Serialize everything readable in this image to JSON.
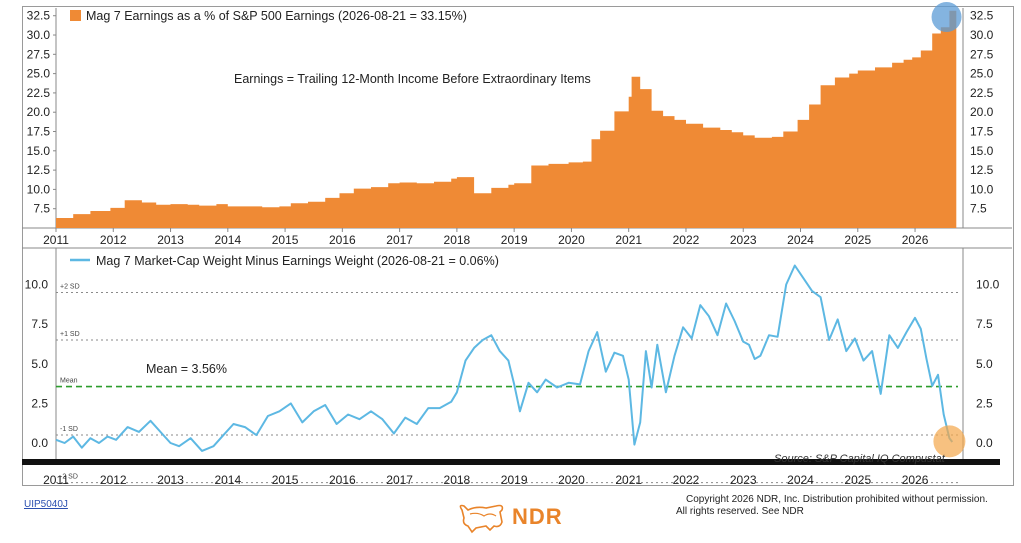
{
  "colors": {
    "earnings_fill": "#ef8a35",
    "spread_line": "#5db8e3",
    "mean_line": "#2d9d2d",
    "sd_line": "#8a8a8a",
    "highlight_blue": "#5b9bd5",
    "highlight_orange": "#f3a64a",
    "brand": "#e9842a"
  },
  "chart_data": [
    {
      "type": "area",
      "legend": "Mag 7 Earnings as a % of S&P 500 Earnings (2026-08-21 = 33.15%)",
      "annotation": "Earnings = Trailing 12-Month Income Before Extraordinary Items",
      "x_ticks": [
        "2011",
        "2012",
        "2013",
        "2014",
        "2015",
        "2016",
        "2017",
        "2018",
        "2019",
        "2020",
        "2021",
        "2022",
        "2023",
        "2024",
        "2025",
        "2026"
      ],
      "y_ticks": [
        "7.5",
        "10.0",
        "12.5",
        "15.0",
        "17.5",
        "20.0",
        "22.5",
        "25.0",
        "27.5",
        "30.0",
        "32.5"
      ],
      "ylim": [
        5,
        33.5
      ],
      "xlim": [
        2011.0,
        2026.75
      ],
      "series": [
        {
          "x": [
            2011.0,
            2011.3,
            2011.6,
            2011.95,
            2012.2,
            2012.5,
            2012.75,
            2013.0,
            2013.3,
            2013.5,
            2013.8,
            2014.0,
            2014.3,
            2014.6,
            2014.9,
            2015.1,
            2015.4,
            2015.7,
            2015.95,
            2016.2,
            2016.5,
            2016.8,
            2017.0,
            2017.3,
            2017.6,
            2017.9,
            2018.0,
            2018.3,
            2018.6,
            2018.9,
            2019.0,
            2019.3,
            2019.6,
            2019.95,
            2020.2,
            2020.35,
            2020.5,
            2020.75,
            2021.0,
            2021.05,
            2021.2,
            2021.4,
            2021.6,
            2021.8,
            2022.0,
            2022.3,
            2022.6,
            2022.8,
            2023.0,
            2023.2,
            2023.5,
            2023.7,
            2023.95,
            2024.15,
            2024.35,
            2024.6,
            2024.85,
            2025.0,
            2025.3,
            2025.6,
            2025.8,
            2025.95,
            2026.1,
            2026.3,
            2026.45,
            2026.6,
            2026.65
          ],
          "values": [
            6.3,
            6.8,
            7.2,
            7.6,
            8.6,
            8.3,
            8.0,
            8.1,
            8.0,
            7.9,
            8.1,
            7.8,
            7.8,
            7.7,
            7.8,
            8.2,
            8.4,
            8.9,
            9.5,
            10.1,
            10.3,
            10.8,
            10.9,
            10.8,
            11.0,
            11.4,
            11.6,
            9.5,
            10.2,
            10.6,
            10.8,
            13.1,
            13.3,
            13.5,
            13.6,
            16.5,
            17.6,
            20.1,
            22.0,
            24.6,
            23.0,
            20.2,
            19.5,
            19.0,
            18.5,
            18.0,
            17.7,
            17.4,
            17.0,
            16.7,
            16.8,
            17.5,
            19.0,
            21.0,
            23.5,
            24.5,
            25.0,
            25.4,
            25.8,
            26.4,
            26.8,
            27.1,
            28.0,
            30.2,
            31.0,
            33.15,
            33.15
          ]
        }
      ]
    },
    {
      "type": "line",
      "legend": "Mag 7 Market-Cap Weight Minus Earnings Weight (2026-08-21 = 0.06%)",
      "mean_label": "Mean = 3.56%",
      "mean": 3.56,
      "sd_levels": [
        {
          "label": "+2 SD",
          "value": 9.5
        },
        {
          "label": "+1 SD",
          "value": 6.5
        },
        {
          "label": "Mean",
          "value": 3.56
        },
        {
          "label": "-1 SD",
          "value": 0.5
        },
        {
          "label": "-2 SD",
          "value": -2.5
        }
      ],
      "source": "Source: S&P Capital IQ Compustat",
      "x_ticks": [
        "2011",
        "2012",
        "2013",
        "2014",
        "2015",
        "2016",
        "2017",
        "2018",
        "2019",
        "2020",
        "2021",
        "2022",
        "2023",
        "2024",
        "2025",
        "2026"
      ],
      "y_ticks": [
        "0.0",
        "2.5",
        "5.0",
        "7.5",
        "10.0"
      ],
      "ylim": [
        -1.2,
        11.8
      ],
      "xlim": [
        2011.0,
        2026.75
      ],
      "series": [
        {
          "x": [
            2011.0,
            2011.15,
            2011.3,
            2011.45,
            2011.6,
            2011.75,
            2011.9,
            2012.05,
            2012.25,
            2012.45,
            2012.65,
            2012.85,
            2013.0,
            2013.15,
            2013.35,
            2013.55,
            2013.75,
            2013.9,
            2014.1,
            2014.3,
            2014.5,
            2014.7,
            2014.9,
            2015.1,
            2015.3,
            2015.5,
            2015.7,
            2015.9,
            2016.1,
            2016.3,
            2016.5,
            2016.7,
            2016.9,
            2017.1,
            2017.3,
            2017.5,
            2017.7,
            2017.9,
            2018.0,
            2018.15,
            2018.3,
            2018.45,
            2018.6,
            2018.75,
            2018.9,
            2019.0,
            2019.1,
            2019.25,
            2019.4,
            2019.55,
            2019.75,
            2019.95,
            2020.15,
            2020.3,
            2020.45,
            2020.6,
            2020.75,
            2020.9,
            2021.0,
            2021.1,
            2021.2,
            2021.3,
            2021.4,
            2021.5,
            2021.65,
            2021.8,
            2021.95,
            2022.1,
            2022.25,
            2022.4,
            2022.55,
            2022.7,
            2022.85,
            2023.0,
            2023.1,
            2023.2,
            2023.3,
            2023.45,
            2023.6,
            2023.75,
            2023.9,
            2024.05,
            2024.2,
            2024.35,
            2024.5,
            2024.65,
            2024.8,
            2024.95,
            2025.1,
            2025.25,
            2025.4,
            2025.55,
            2025.7,
            2025.85,
            2026.0,
            2026.1,
            2026.2,
            2026.3,
            2026.4,
            2026.5,
            2026.6,
            2026.65
          ],
          "values": [
            0.2,
            0.0,
            0.4,
            -0.3,
            0.3,
            0.0,
            0.4,
            0.2,
            1.0,
            0.7,
            1.4,
            0.6,
            0.0,
            -0.2,
            0.3,
            -0.5,
            -0.2,
            0.4,
            1.2,
            1.0,
            0.5,
            1.7,
            2.0,
            2.5,
            1.3,
            2.0,
            2.4,
            1.2,
            1.8,
            1.5,
            2.0,
            1.5,
            0.6,
            1.6,
            1.2,
            2.2,
            2.2,
            2.6,
            3.2,
            5.2,
            6.0,
            6.5,
            6.8,
            5.8,
            5.2,
            3.7,
            2.0,
            3.8,
            3.2,
            4.0,
            3.5,
            3.8,
            3.7,
            5.8,
            7.0,
            4.5,
            5.7,
            5.5,
            4.0,
            -0.1,
            1.3,
            5.8,
            3.5,
            6.2,
            3.2,
            5.5,
            7.3,
            6.6,
            8.7,
            8.0,
            6.8,
            8.8,
            7.7,
            6.4,
            6.2,
            5.3,
            5.5,
            6.8,
            6.7,
            10.0,
            11.2,
            10.4,
            9.6,
            9.2,
            6.5,
            7.8,
            5.8,
            6.6,
            5.2,
            5.8,
            3.1,
            6.8,
            6.0,
            7.0,
            7.9,
            7.2,
            5.3,
            3.6,
            4.3,
            1.8,
            0.3,
            0.06
          ]
        }
      ]
    }
  ],
  "footer": {
    "job_code": "UIP5040J",
    "brand": "NDR",
    "copyright_line1": "Copyright 2026 NDR, Inc. Distribution prohibited without permission.",
    "copyright_line2": "All rights reserved. See NDR"
  }
}
